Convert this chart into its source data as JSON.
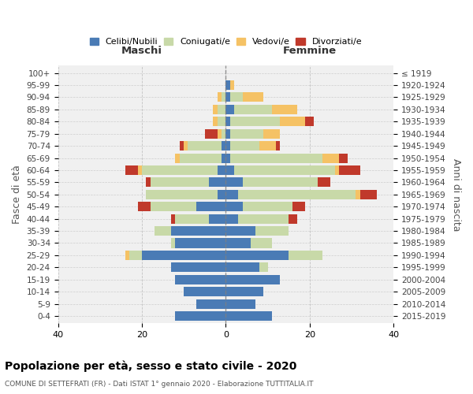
{
  "age_groups": [
    "0-4",
    "5-9",
    "10-14",
    "15-19",
    "20-24",
    "25-29",
    "30-34",
    "35-39",
    "40-44",
    "45-49",
    "50-54",
    "55-59",
    "60-64",
    "65-69",
    "70-74",
    "75-79",
    "80-84",
    "85-89",
    "90-94",
    "95-99",
    "100+"
  ],
  "birth_years": [
    "2015-2019",
    "2010-2014",
    "2005-2009",
    "2000-2004",
    "1995-1999",
    "1990-1994",
    "1985-1989",
    "1980-1984",
    "1975-1979",
    "1970-1974",
    "1965-1969",
    "1960-1964",
    "1955-1959",
    "1950-1954",
    "1945-1949",
    "1940-1944",
    "1935-1939",
    "1930-1934",
    "1925-1929",
    "1920-1924",
    "≤ 1919"
  ],
  "maschi": {
    "celibe": [
      12,
      7,
      10,
      12,
      13,
      20,
      12,
      13,
      4,
      7,
      2,
      4,
      2,
      1,
      1,
      0,
      0,
      0,
      0,
      0,
      0
    ],
    "coniugato": [
      0,
      0,
      0,
      0,
      0,
      3,
      1,
      4,
      8,
      11,
      17,
      14,
      18,
      10,
      8,
      1,
      2,
      2,
      1,
      0,
      0
    ],
    "vedovo": [
      0,
      0,
      0,
      0,
      0,
      1,
      0,
      0,
      0,
      0,
      0,
      0,
      1,
      1,
      1,
      1,
      1,
      1,
      1,
      0,
      0
    ],
    "divorziato": [
      0,
      0,
      0,
      0,
      0,
      0,
      0,
      0,
      1,
      3,
      0,
      1,
      3,
      0,
      1,
      3,
      0,
      0,
      0,
      0,
      0
    ]
  },
  "femmine": {
    "nubile": [
      11,
      7,
      9,
      13,
      8,
      15,
      6,
      7,
      3,
      4,
      3,
      4,
      2,
      1,
      1,
      1,
      1,
      2,
      1,
      1,
      0
    ],
    "coniugata": [
      0,
      0,
      0,
      0,
      2,
      8,
      5,
      8,
      12,
      12,
      28,
      18,
      24,
      22,
      7,
      8,
      12,
      9,
      3,
      0,
      0
    ],
    "vedova": [
      0,
      0,
      0,
      0,
      0,
      0,
      0,
      0,
      0,
      0,
      1,
      0,
      1,
      4,
      4,
      4,
      6,
      6,
      5,
      1,
      0
    ],
    "divorziata": [
      0,
      0,
      0,
      0,
      0,
      0,
      0,
      0,
      2,
      3,
      4,
      3,
      5,
      2,
      1,
      0,
      2,
      0,
      0,
      0,
      0
    ]
  },
  "colors": {
    "celibe": "#4a7bb5",
    "coniugato": "#c8d9a8",
    "vedovo": "#f5c265",
    "divorziato": "#c0392b"
  },
  "xlim": 40,
  "title": "Popolazione per età, sesso e stato civile - 2020",
  "subtitle": "COMUNE DI SETTEFRATI (FR) - Dati ISTAT 1° gennaio 2020 - Elaborazione TUTTITALIA.IT",
  "ylabel_left": "Fasce di età",
  "ylabel_right": "Anni di nascita",
  "xlabel_left": "Maschi",
  "xlabel_right": "Femmine"
}
